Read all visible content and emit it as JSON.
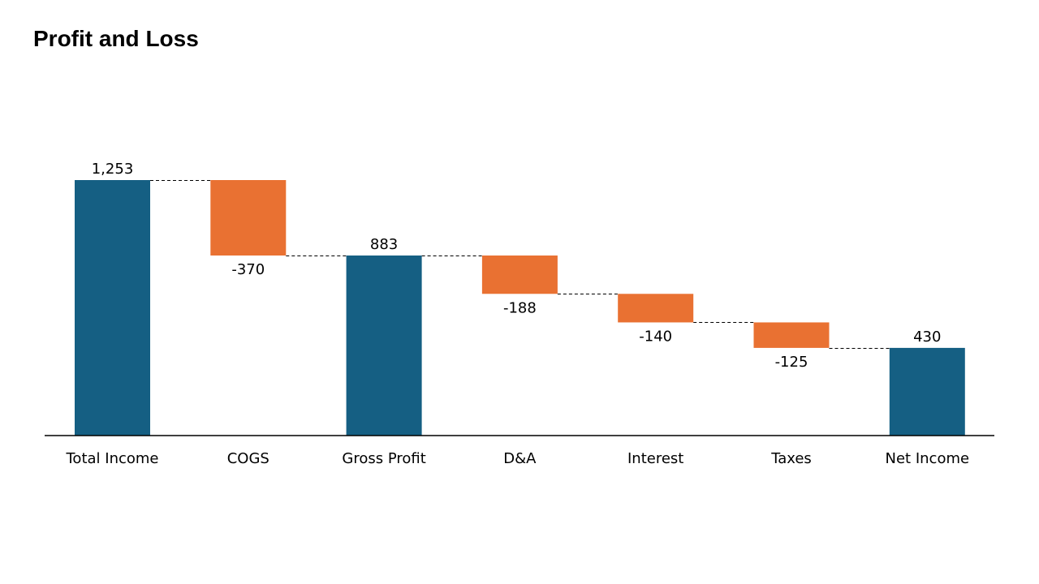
{
  "chart_data": {
    "type": "bar",
    "subtype": "waterfall",
    "title": "Profit and Loss",
    "xlabel": "",
    "ylabel": "",
    "categories": [
      "Total Income",
      "COGS",
      "Gross Profit",
      "D&A",
      "Interest",
      "Taxes",
      "Net Income"
    ],
    "values": [
      1253,
      -370,
      883,
      -188,
      -140,
      -125,
      430
    ],
    "value_labels": [
      "1,253",
      "-370",
      "883",
      "-188",
      "-140",
      "-125",
      "430"
    ],
    "kinds": [
      "total",
      "decrease",
      "total",
      "decrease",
      "decrease",
      "decrease",
      "total"
    ],
    "ylim": [
      0,
      1350
    ],
    "grid": false,
    "legend": "none",
    "connector_lines": "dashed",
    "colors": {
      "total": "#155F83",
      "decrease": "#E97132",
      "axis": "#000000",
      "connector": "#000000"
    }
  }
}
